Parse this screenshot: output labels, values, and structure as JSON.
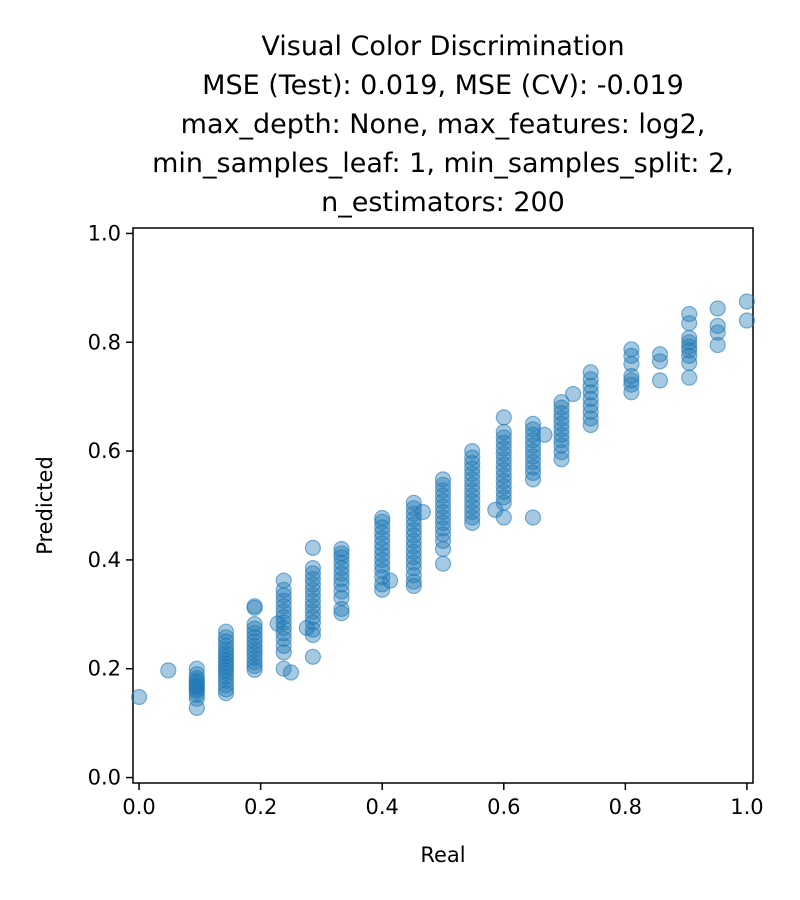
{
  "chart_data": {
    "type": "scatter",
    "title_lines": [
      "Visual Color Discrimination",
      "MSE (Test): 0.019, MSE (CV): -0.019",
      "max_depth: None, max_features: log2,",
      "min_samples_leaf: 1, min_samples_split: 2,",
      "n_estimators: 200"
    ],
    "xlabel": "Real",
    "ylabel": "Predicted",
    "xlim": [
      -0.01,
      1.01
    ],
    "ylim": [
      -0.01,
      1.01
    ],
    "xticks": [
      "0.0",
      "0.2",
      "0.4",
      "0.6",
      "0.8",
      "1.0"
    ],
    "yticks": [
      "0.0",
      "0.2",
      "0.4",
      "0.6",
      "0.8",
      "1.0"
    ],
    "grid": false,
    "point_color": "#1f77b4",
    "point_alpha": 0.4,
    "points": [
      [
        0.0,
        0.148
      ],
      [
        0.048,
        0.197
      ],
      [
        0.095,
        0.128
      ],
      [
        0.095,
        0.145
      ],
      [
        0.095,
        0.152
      ],
      [
        0.095,
        0.158
      ],
      [
        0.095,
        0.162
      ],
      [
        0.095,
        0.166
      ],
      [
        0.095,
        0.17
      ],
      [
        0.095,
        0.174
      ],
      [
        0.095,
        0.178
      ],
      [
        0.095,
        0.183
      ],
      [
        0.095,
        0.19
      ],
      [
        0.095,
        0.2
      ],
      [
        0.143,
        0.155
      ],
      [
        0.143,
        0.162
      ],
      [
        0.143,
        0.17
      ],
      [
        0.143,
        0.178
      ],
      [
        0.143,
        0.185
      ],
      [
        0.143,
        0.192
      ],
      [
        0.143,
        0.198
      ],
      [
        0.143,
        0.204
      ],
      [
        0.143,
        0.21
      ],
      [
        0.143,
        0.216
      ],
      [
        0.143,
        0.222
      ],
      [
        0.143,
        0.228
      ],
      [
        0.143,
        0.235
      ],
      [
        0.143,
        0.242
      ],
      [
        0.143,
        0.25
      ],
      [
        0.143,
        0.258
      ],
      [
        0.143,
        0.268
      ],
      [
        0.19,
        0.198
      ],
      [
        0.19,
        0.205
      ],
      [
        0.19,
        0.212
      ],
      [
        0.19,
        0.22
      ],
      [
        0.19,
        0.228
      ],
      [
        0.19,
        0.235
      ],
      [
        0.19,
        0.242
      ],
      [
        0.19,
        0.25
      ],
      [
        0.19,
        0.258
      ],
      [
        0.19,
        0.266
      ],
      [
        0.19,
        0.274
      ],
      [
        0.19,
        0.282
      ],
      [
        0.19,
        0.312
      ],
      [
        0.19,
        0.315
      ],
      [
        0.238,
        0.2
      ],
      [
        0.238,
        0.23
      ],
      [
        0.238,
        0.242
      ],
      [
        0.238,
        0.255
      ],
      [
        0.238,
        0.265
      ],
      [
        0.238,
        0.275
      ],
      [
        0.238,
        0.285
      ],
      [
        0.238,
        0.295
      ],
      [
        0.238,
        0.305
      ],
      [
        0.238,
        0.315
      ],
      [
        0.238,
        0.325
      ],
      [
        0.238,
        0.335
      ],
      [
        0.238,
        0.345
      ],
      [
        0.238,
        0.362
      ],
      [
        0.228,
        0.283
      ],
      [
        0.25,
        0.193
      ],
      [
        0.276,
        0.275
      ],
      [
        0.286,
        0.222
      ],
      [
        0.286,
        0.262
      ],
      [
        0.286,
        0.272
      ],
      [
        0.286,
        0.285
      ],
      [
        0.286,
        0.295
      ],
      [
        0.286,
        0.305
      ],
      [
        0.286,
        0.315
      ],
      [
        0.286,
        0.325
      ],
      [
        0.286,
        0.335
      ],
      [
        0.286,
        0.345
      ],
      [
        0.286,
        0.355
      ],
      [
        0.286,
        0.365
      ],
      [
        0.286,
        0.375
      ],
      [
        0.286,
        0.385
      ],
      [
        0.286,
        0.422
      ],
      [
        0.333,
        0.302
      ],
      [
        0.333,
        0.31
      ],
      [
        0.333,
        0.33
      ],
      [
        0.333,
        0.342
      ],
      [
        0.333,
        0.355
      ],
      [
        0.333,
        0.365
      ],
      [
        0.333,
        0.375
      ],
      [
        0.333,
        0.385
      ],
      [
        0.333,
        0.395
      ],
      [
        0.333,
        0.405
      ],
      [
        0.333,
        0.412
      ],
      [
        0.333,
        0.42
      ],
      [
        0.4,
        0.345
      ],
      [
        0.4,
        0.355
      ],
      [
        0.4,
        0.368
      ],
      [
        0.4,
        0.38
      ],
      [
        0.4,
        0.39
      ],
      [
        0.4,
        0.4
      ],
      [
        0.4,
        0.41
      ],
      [
        0.4,
        0.42
      ],
      [
        0.4,
        0.43
      ],
      [
        0.4,
        0.44
      ],
      [
        0.4,
        0.45
      ],
      [
        0.4,
        0.46
      ],
      [
        0.4,
        0.47
      ],
      [
        0.4,
        0.477
      ],
      [
        0.413,
        0.362
      ],
      [
        0.452,
        0.352
      ],
      [
        0.452,
        0.36
      ],
      [
        0.452,
        0.372
      ],
      [
        0.452,
        0.385
      ],
      [
        0.452,
        0.395
      ],
      [
        0.452,
        0.405
      ],
      [
        0.452,
        0.415
      ],
      [
        0.452,
        0.425
      ],
      [
        0.452,
        0.435
      ],
      [
        0.452,
        0.445
      ],
      [
        0.452,
        0.455
      ],
      [
        0.452,
        0.465
      ],
      [
        0.452,
        0.475
      ],
      [
        0.452,
        0.485
      ],
      [
        0.452,
        0.495
      ],
      [
        0.452,
        0.505
      ],
      [
        0.467,
        0.488
      ],
      [
        0.5,
        0.393
      ],
      [
        0.5,
        0.42
      ],
      [
        0.5,
        0.435
      ],
      [
        0.5,
        0.447
      ],
      [
        0.5,
        0.458
      ],
      [
        0.5,
        0.468
      ],
      [
        0.5,
        0.478
      ],
      [
        0.5,
        0.488
      ],
      [
        0.5,
        0.498
      ],
      [
        0.5,
        0.508
      ],
      [
        0.5,
        0.518
      ],
      [
        0.5,
        0.528
      ],
      [
        0.5,
        0.538
      ],
      [
        0.5,
        0.548
      ],
      [
        0.548,
        0.468
      ],
      [
        0.548,
        0.478
      ],
      [
        0.548,
        0.488
      ],
      [
        0.548,
        0.498
      ],
      [
        0.548,
        0.508
      ],
      [
        0.548,
        0.518
      ],
      [
        0.548,
        0.528
      ],
      [
        0.548,
        0.538
      ],
      [
        0.548,
        0.548
      ],
      [
        0.548,
        0.558
      ],
      [
        0.548,
        0.568
      ],
      [
        0.548,
        0.578
      ],
      [
        0.548,
        0.588
      ],
      [
        0.548,
        0.6
      ],
      [
        0.586,
        0.492
      ],
      [
        0.6,
        0.478
      ],
      [
        0.6,
        0.505
      ],
      [
        0.6,
        0.515
      ],
      [
        0.6,
        0.525
      ],
      [
        0.6,
        0.535
      ],
      [
        0.6,
        0.545
      ],
      [
        0.6,
        0.555
      ],
      [
        0.6,
        0.565
      ],
      [
        0.6,
        0.575
      ],
      [
        0.6,
        0.585
      ],
      [
        0.6,
        0.595
      ],
      [
        0.6,
        0.605
      ],
      [
        0.6,
        0.615
      ],
      [
        0.6,
        0.625
      ],
      [
        0.6,
        0.635
      ],
      [
        0.6,
        0.662
      ],
      [
        0.648,
        0.478
      ],
      [
        0.648,
        0.548
      ],
      [
        0.648,
        0.56
      ],
      [
        0.648,
        0.57
      ],
      [
        0.648,
        0.58
      ],
      [
        0.648,
        0.59
      ],
      [
        0.648,
        0.6
      ],
      [
        0.648,
        0.61
      ],
      [
        0.648,
        0.62
      ],
      [
        0.648,
        0.63
      ],
      [
        0.648,
        0.64
      ],
      [
        0.648,
        0.65
      ],
      [
        0.667,
        0.63
      ],
      [
        0.695,
        0.585
      ],
      [
        0.695,
        0.598
      ],
      [
        0.695,
        0.61
      ],
      [
        0.695,
        0.62
      ],
      [
        0.695,
        0.63
      ],
      [
        0.695,
        0.64
      ],
      [
        0.695,
        0.65
      ],
      [
        0.695,
        0.66
      ],
      [
        0.695,
        0.67
      ],
      [
        0.695,
        0.68
      ],
      [
        0.695,
        0.69
      ],
      [
        0.714,
        0.705
      ],
      [
        0.743,
        0.648
      ],
      [
        0.743,
        0.66
      ],
      [
        0.743,
        0.672
      ],
      [
        0.743,
        0.684
      ],
      [
        0.743,
        0.696
      ],
      [
        0.743,
        0.708
      ],
      [
        0.743,
        0.72
      ],
      [
        0.743,
        0.732
      ],
      [
        0.743,
        0.745
      ],
      [
        0.81,
        0.708
      ],
      [
        0.81,
        0.722
      ],
      [
        0.81,
        0.73
      ],
      [
        0.81,
        0.738
      ],
      [
        0.81,
        0.76
      ],
      [
        0.81,
        0.775
      ],
      [
        0.81,
        0.787
      ],
      [
        0.857,
        0.73
      ],
      [
        0.857,
        0.765
      ],
      [
        0.857,
        0.778
      ],
      [
        0.905,
        0.735
      ],
      [
        0.905,
        0.762
      ],
      [
        0.905,
        0.775
      ],
      [
        0.905,
        0.785
      ],
      [
        0.905,
        0.792
      ],
      [
        0.905,
        0.8
      ],
      [
        0.905,
        0.808
      ],
      [
        0.905,
        0.835
      ],
      [
        0.905,
        0.852
      ],
      [
        0.952,
        0.795
      ],
      [
        0.952,
        0.818
      ],
      [
        0.952,
        0.83
      ],
      [
        0.952,
        0.862
      ],
      [
        1.0,
        0.84
      ],
      [
        1.0,
        0.875
      ]
    ]
  }
}
